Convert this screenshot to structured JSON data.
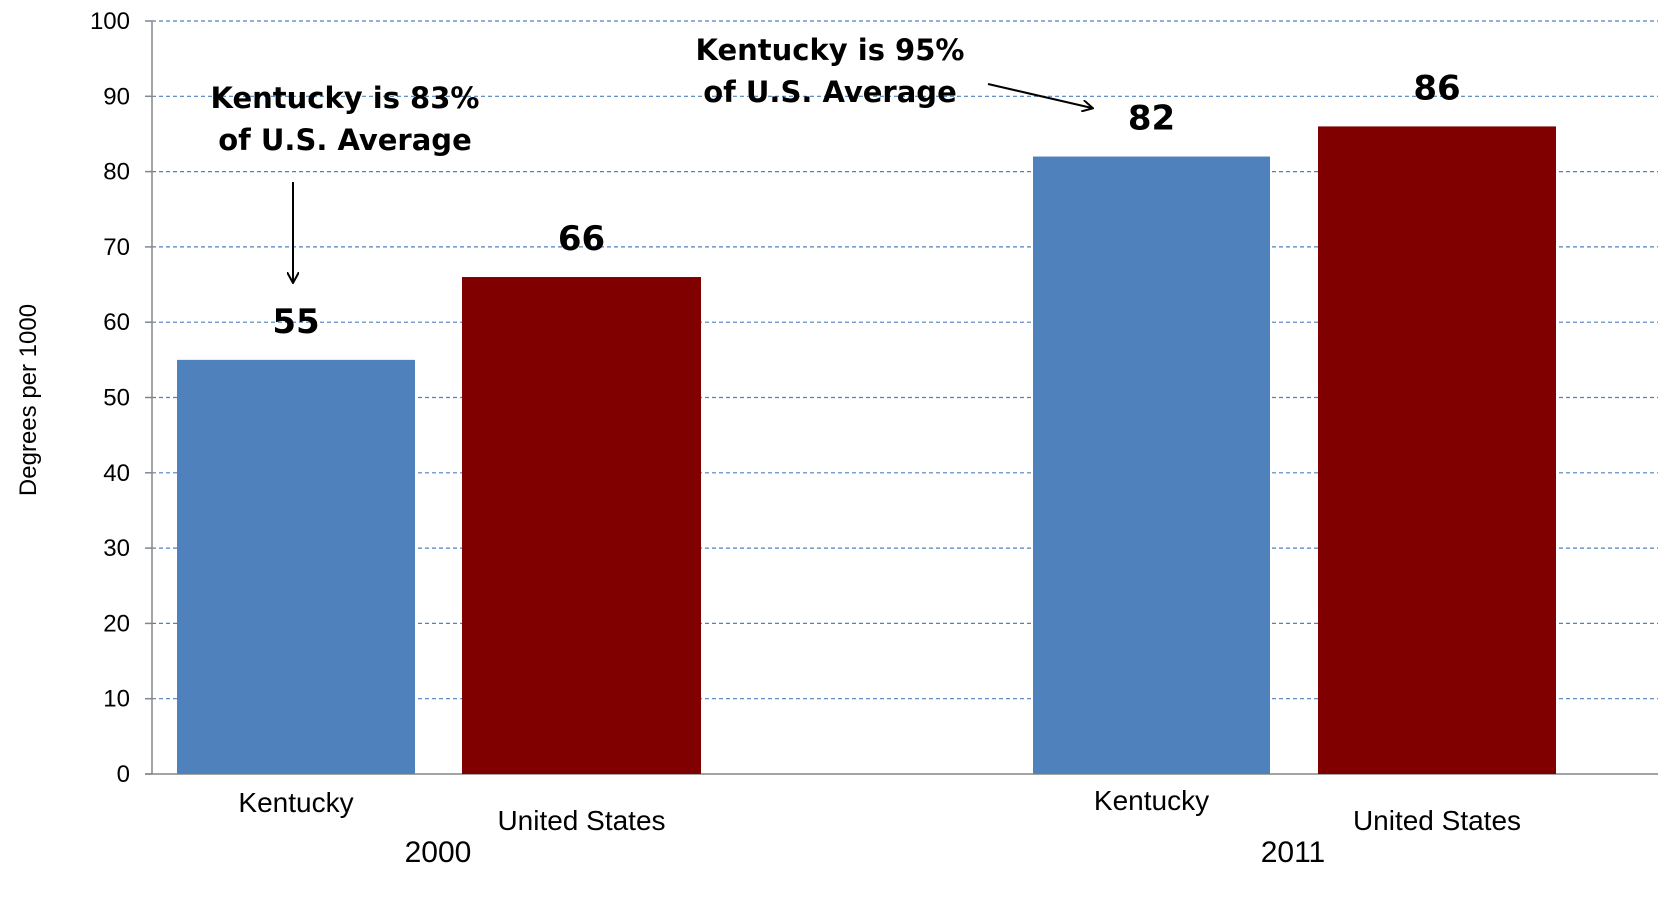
{
  "chart_data": {
    "type": "bar",
    "ylabel": "Degrees per 1000",
    "ylim": [
      0,
      100
    ],
    "yticks": [
      0,
      10,
      20,
      30,
      40,
      50,
      60,
      70,
      80,
      90,
      100
    ],
    "grid": true,
    "groups": [
      {
        "label": "2000",
        "bars": [
          {
            "category": "Kentucky",
            "value": 55,
            "data_label": "55",
            "color": "#4F81BD"
          },
          {
            "category": "United States",
            "value": 66,
            "data_label": "66",
            "color": "#800000"
          }
        ]
      },
      {
        "label": "2011",
        "bars": [
          {
            "category": "Kentucky",
            "value": 82,
            "data_label": "82",
            "color": "#4F81BD"
          },
          {
            "category": "United States",
            "value": 86,
            "data_label": "86",
            "color": "#800000"
          }
        ]
      }
    ],
    "annotations": [
      {
        "lines": [
          "Kentucky is 83%",
          "of U.S. Average"
        ],
        "target": "2000-Kentucky"
      },
      {
        "lines": [
          "Kentucky is 95%",
          "of U.S. Average"
        ],
        "target": "2011-Kentucky"
      }
    ]
  }
}
